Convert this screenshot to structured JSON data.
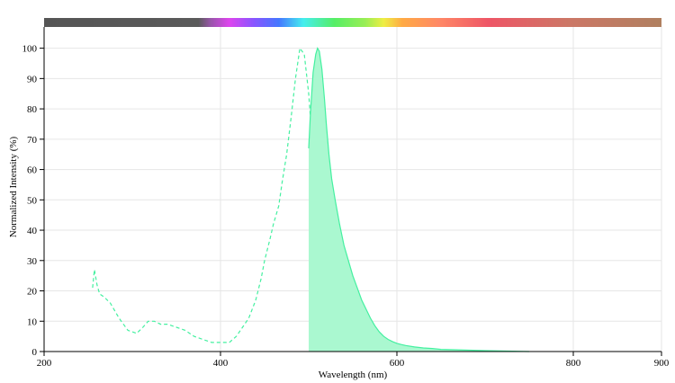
{
  "chart_data": {
    "type": "area",
    "xlabel": "Wavelength (nm)",
    "ylabel": "Normalized Intensity (%)",
    "xlim": [
      200,
      900
    ],
    "ylim": [
      0,
      107
    ],
    "x_ticks": [
      200,
      400,
      600,
      800,
      900
    ],
    "y_ticks": [
      0,
      10,
      20,
      30,
      40,
      50,
      60,
      70,
      80,
      90,
      100
    ],
    "grid": true,
    "spectrum_bar": true,
    "series": [
      {
        "style": "dashed",
        "color": "#44f0a0",
        "x": [
          255,
          257,
          260,
          263,
          268,
          275,
          285,
          295,
          305,
          312,
          318,
          325,
          332,
          340,
          350,
          360,
          370,
          380,
          390,
          400,
          410,
          418,
          425,
          432,
          440,
          446,
          450,
          456,
          460,
          466,
          470,
          475,
          480,
          485,
          490,
          495,
          500,
          505
        ],
        "values": [
          21,
          27,
          22,
          19,
          18,
          16,
          11,
          7,
          6,
          8,
          10,
          10,
          9,
          9,
          8,
          7,
          5,
          4,
          3,
          3,
          3,
          5,
          8,
          11,
          17,
          24,
          30,
          37,
          42,
          48,
          56,
          65,
          77,
          90,
          100,
          98,
          85,
          65
        ]
      },
      {
        "style": "filled",
        "color": "#44f0a0",
        "fill": "#aaf8d0",
        "x": [
          500,
          502,
          505,
          508,
          510,
          512,
          515,
          518,
          520,
          523,
          526,
          530,
          535,
          540,
          545,
          550,
          555,
          560,
          565,
          570,
          575,
          580,
          585,
          590,
          595,
          600,
          605,
          610,
          620,
          630,
          640,
          650,
          700,
          750
        ],
        "values": [
          67,
          79,
          92,
          98,
          100,
          99,
          93,
          83,
          75,
          65,
          57,
          50,
          42,
          35,
          30,
          25,
          21,
          17,
          14,
          11,
          8.5,
          6.5,
          5,
          4,
          3.3,
          2.7,
          2.3,
          2,
          1.5,
          1.2,
          1,
          0.7,
          0.3,
          0
        ]
      }
    ]
  }
}
